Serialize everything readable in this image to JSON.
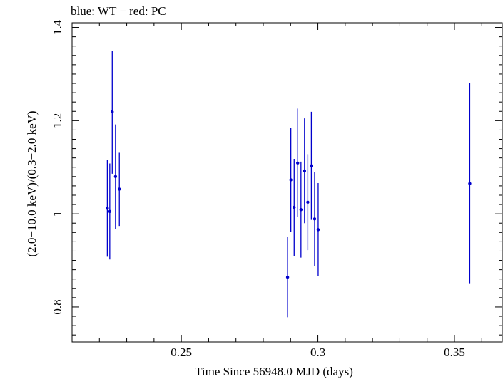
{
  "chart_data": {
    "type": "scatter",
    "title": "blue: WT − red: PC",
    "xlabel": "Time Since 56948.0 MJD (days)",
    "ylabel": "(2.0−10.0 keV)/(0.3−2.0 keV)",
    "xlim": [
      0.21,
      0.3675
    ],
    "ylim": [
      0.725,
      1.41
    ],
    "x_ticks": [
      0.25,
      0.3,
      0.35
    ],
    "x_tick_labels": [
      "0.25",
      "0.3",
      "0.35"
    ],
    "y_ticks": [
      0.8,
      1.0,
      1.2,
      1.4
    ],
    "y_tick_labels": [
      "0.8",
      "1",
      "1.2",
      "1.4"
    ],
    "series": [
      {
        "name": "WT",
        "color": "#0000cc",
        "points": [
          {
            "x": 0.2229,
            "y": 1.012,
            "lo": 0.908,
            "hi": 1.115
          },
          {
            "x": 0.2238,
            "y": 1.005,
            "lo": 0.902,
            "hi": 1.108
          },
          {
            "x": 0.2247,
            "y": 1.219,
            "lo": 1.086,
            "hi": 1.35
          },
          {
            "x": 0.2259,
            "y": 1.08,
            "lo": 0.968,
            "hi": 1.192
          },
          {
            "x": 0.2273,
            "y": 1.053,
            "lo": 0.974,
            "hi": 1.131
          },
          {
            "x": 0.2889,
            "y": 0.864,
            "lo": 0.778,
            "hi": 0.95
          },
          {
            "x": 0.2901,
            "y": 1.073,
            "lo": 0.962,
            "hi": 1.184
          },
          {
            "x": 0.2913,
            "y": 1.014,
            "lo": 0.91,
            "hi": 1.118
          },
          {
            "x": 0.2926,
            "y": 1.109,
            "lo": 0.993,
            "hi": 1.226
          },
          {
            "x": 0.2938,
            "y": 1.009,
            "lo": 0.906,
            "hi": 1.112
          },
          {
            "x": 0.2951,
            "y": 1.092,
            "lo": 0.98,
            "hi": 1.205
          },
          {
            "x": 0.2963,
            "y": 1.025,
            "lo": 0.922,
            "hi": 1.128
          },
          {
            "x": 0.2976,
            "y": 1.103,
            "lo": 0.987,
            "hi": 1.219
          },
          {
            "x": 0.2988,
            "y": 0.989,
            "lo": 0.888,
            "hi": 1.09
          },
          {
            "x": 0.3001,
            "y": 0.966,
            "lo": 0.866,
            "hi": 1.066
          },
          {
            "x": 0.3556,
            "y": 1.065,
            "lo": 0.851,
            "hi": 1.28
          }
        ]
      }
    ]
  }
}
